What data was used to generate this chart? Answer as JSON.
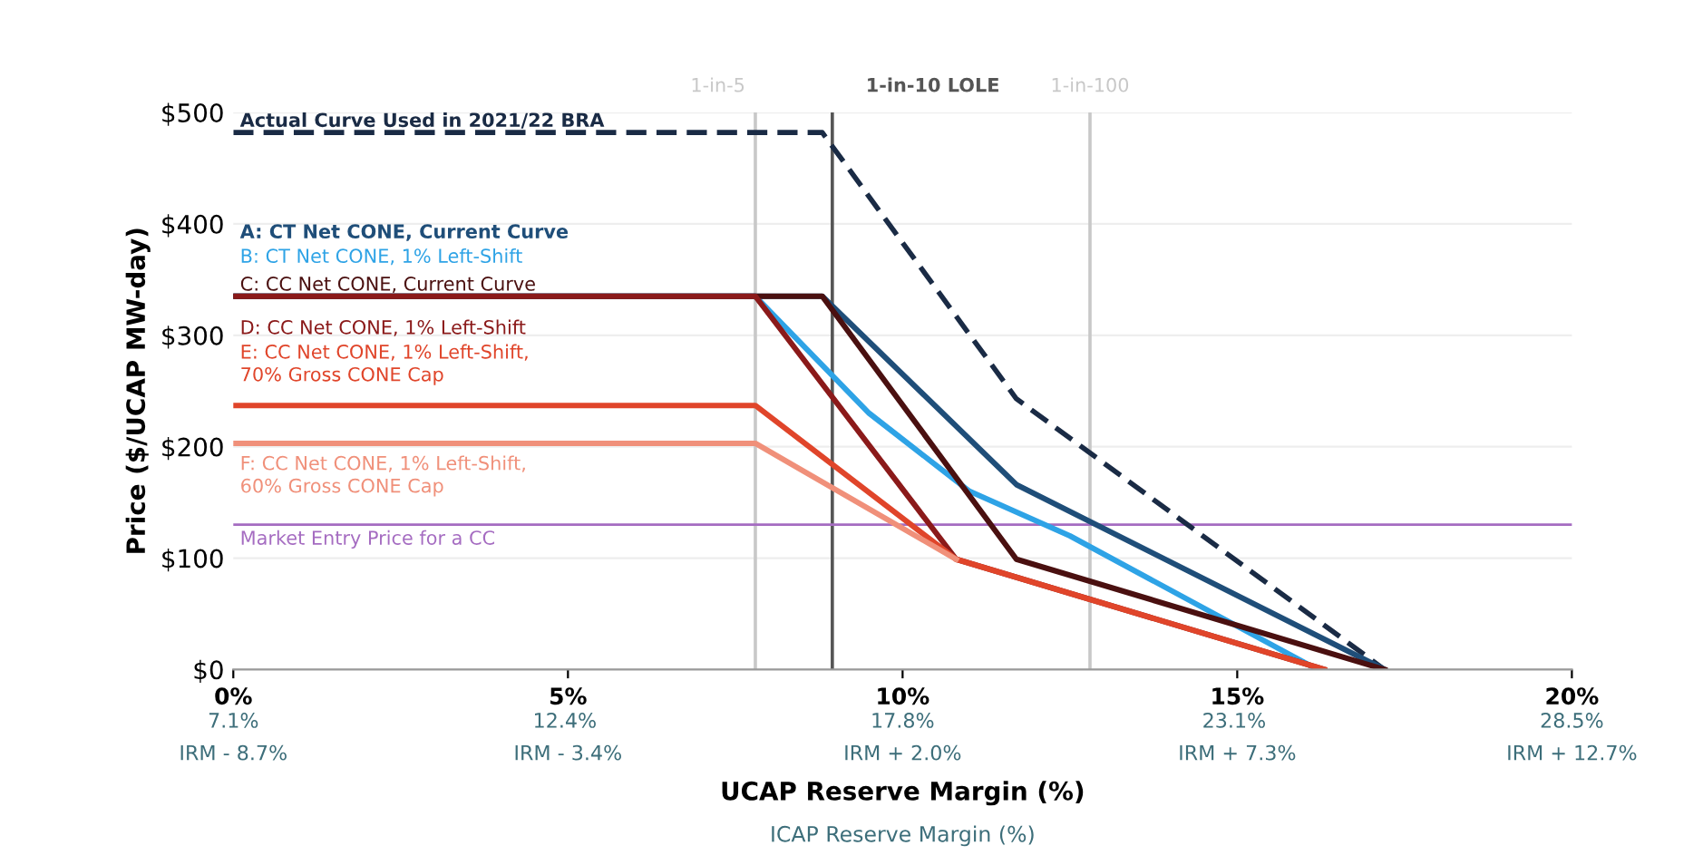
{
  "chart_data": {
    "type": "line",
    "xlabel": "UCAP Reserve Margin (%)",
    "x2label": "ICAP Reserve Margin (%)",
    "ylabel": "Price ($/UCAP MW-day)",
    "xlim": [
      0,
      20
    ],
    "xticks": [
      {
        "value": 0,
        "label": "0%"
      },
      {
        "value": 5,
        "label": "5%"
      },
      {
        "value": 10,
        "label": "10%"
      },
      {
        "value": 15,
        "label": "15%"
      },
      {
        "value": 20,
        "label": "20%"
      }
    ],
    "x2lim": [
      7.1,
      28.5
    ],
    "x2ticks": [
      {
        "value": 7.1,
        "label": "7.1%"
      },
      {
        "value": 12.4,
        "label": "12.4%"
      },
      {
        "value": 17.8,
        "label": "17.8%"
      },
      {
        "value": 23.1,
        "label": "23.1%"
      },
      {
        "value": 28.5,
        "label": "28.5%"
      }
    ],
    "annotations": [
      "IRM - 8.7%",
      "IRM - 3.4%",
      "IRM + 2.0%",
      "IRM + 7.3%",
      "IRM + 12.7%"
    ],
    "ylim": [
      0,
      500
    ],
    "yticks": [
      {
        "value": 0,
        "label": "$0"
      },
      {
        "value": 100,
        "label": "$100"
      },
      {
        "value": 200,
        "label": "$200"
      },
      {
        "value": 300,
        "label": "$300"
      },
      {
        "value": 400,
        "label": "$400"
      },
      {
        "value": 500,
        "label": "$500"
      }
    ],
    "grid": "y",
    "legend": false,
    "marker": "none",
    "series": [
      {
        "name": "Actual Curve Used in 2021/22 BRA",
        "color": "#1a2b45",
        "line_style": "dashed",
        "x": [
          0,
          8.8,
          11.7,
          17.2
        ],
        "values": [
          482,
          482,
          243,
          0
        ]
      },
      {
        "name": "A: CT Net CONE, Current Curve",
        "color": "#1f4e79",
        "line_style": "solid",
        "x": [
          0,
          8.8,
          11.7,
          17.2
        ],
        "values": [
          335,
          335,
          166,
          0
        ]
      },
      {
        "name": "B: CT Net CONE, 1% Left-Shift",
        "color": "#2ea3e6",
        "line_style": "solid",
        "x": [
          0,
          7.8,
          9.5,
          11.0,
          12.5,
          16.2
        ],
        "values": [
          335,
          335,
          230,
          160,
          120,
          0
        ]
      },
      {
        "name": "C: CC Net CONE, Current Curve",
        "color": "#4a1010",
        "line_style": "solid",
        "x": [
          0,
          8.8,
          11.7,
          17.2
        ],
        "values": [
          335,
          335,
          99,
          0
        ]
      },
      {
        "name": "D: CC Net CONE, 1% Left-Shift",
        "color": "#8b1a1a",
        "line_style": "solid",
        "x": [
          0,
          7.8,
          10.8,
          16.3
        ],
        "values": [
          335,
          335,
          99,
          0
        ]
      },
      {
        "name": "E: CC Net CONE, 1% Left-Shift,\n70% Gross CONE Cap",
        "color": "#e0452a",
        "line_style": "solid",
        "x": [
          0,
          7.8,
          10.8,
          16.3
        ],
        "values": [
          237,
          237,
          99,
          0
        ]
      },
      {
        "name": "F: CC Net CONE, 1% Left-Shift,\n60% Gross CONE Cap",
        "color": "#f0907a",
        "line_style": "solid",
        "x": [
          0,
          7.8,
          10.8
        ],
        "values": [
          203,
          203,
          99
        ]
      }
    ],
    "ref_lines": [
      {
        "axis": "x",
        "value": 7.8,
        "label": "1-in-5",
        "color": "#c8c8c8"
      },
      {
        "axis": "x",
        "value": 8.95,
        "label": "1-in-10 LOLE",
        "color": "#555555"
      },
      {
        "axis": "x",
        "value": 12.8,
        "label": "1-in-100",
        "color": "#c8c8c8"
      },
      {
        "axis": "y",
        "value": 130,
        "label": "Market Entry Price for a CC",
        "color": "#a56cc1"
      }
    ]
  }
}
